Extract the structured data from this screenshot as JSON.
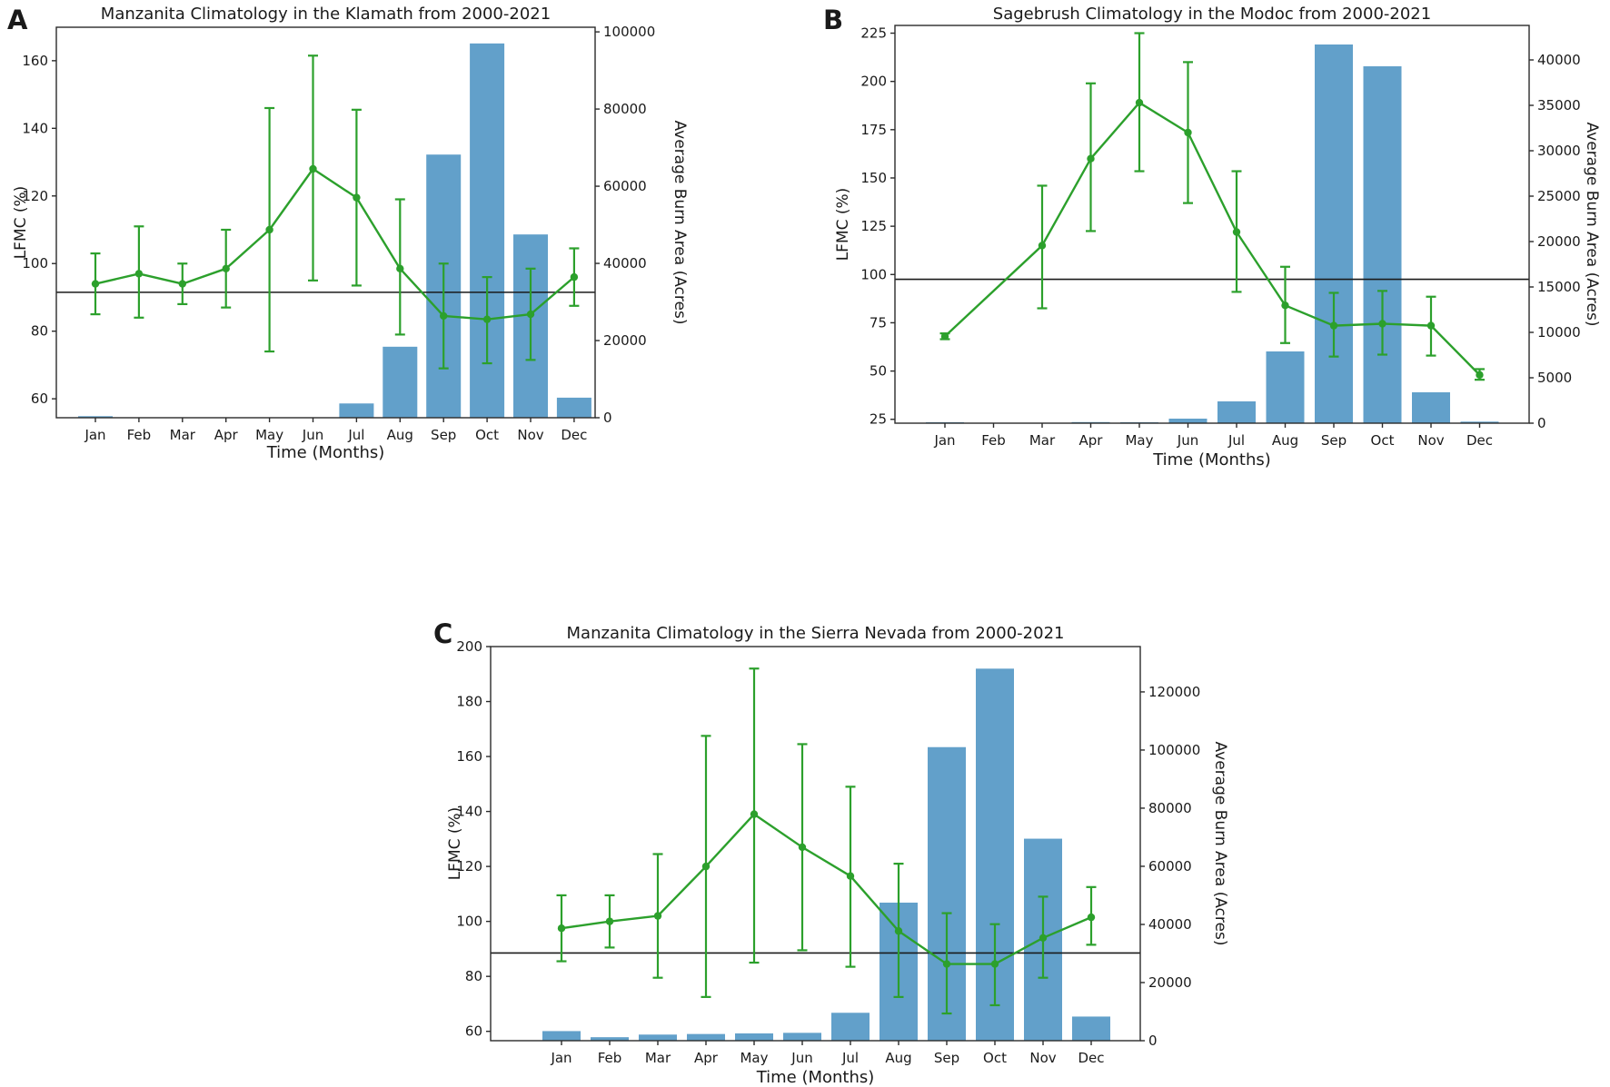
{
  "style": {
    "bar_color": "#1f77b4",
    "bar_opacity": 0.7,
    "bar_rendered_hex": "#62a0cb",
    "line_color": "#2ca02c",
    "threshold_color": "#1a1a1a",
    "spine_color": "#2b2b2b",
    "text_color": "#1a1a1a",
    "background": "#ffffff"
  },
  "chart_data": [
    {
      "id": "A",
      "panel_label": "A",
      "type": "bar",
      "overlay_type": "line-with-errorbars",
      "title": "Manzanita Climatology in the Klamath from 2000-2021",
      "xlabel": "Time (Months)",
      "ylabel_left": "LFMC (%)",
      "ylabel_right": "Average Burn Area (Acres)",
      "categories": [
        "Jan",
        "Feb",
        "Mar",
        "Apr",
        "May",
        "Jun",
        "Jul",
        "Aug",
        "Sep",
        "Oct",
        "Nov",
        "Dec"
      ],
      "series": [
        {
          "name": "LFMC mean",
          "axis": "left",
          "values": [
            94,
            97,
            94,
            98.5,
            110,
            128,
            119.5,
            98.5,
            84.5,
            83.5,
            85,
            96
          ]
        },
        {
          "name": "LFMC error low",
          "axis": "left",
          "values": [
            85,
            84,
            88,
            87,
            74,
            95,
            93.5,
            79,
            69,
            70.5,
            71.5,
            87.5
          ]
        },
        {
          "name": "LFMC error high",
          "axis": "left",
          "values": [
            103,
            111,
            100,
            110,
            146,
            161.5,
            145.5,
            119,
            100,
            96,
            98.5,
            104.5
          ]
        },
        {
          "name": "Average burn area (acres)",
          "axis": "right",
          "values": [
            400,
            0,
            0,
            0,
            0,
            0,
            3700,
            18400,
            68200,
            97000,
            47500,
            5200
          ]
        }
      ],
      "threshold_lfmc": 91.5,
      "yticks_left": [
        60,
        80,
        100,
        120,
        140,
        160
      ],
      "ylim_left": [
        54.4,
        169.9
      ],
      "yticks_right": [
        0,
        20000,
        40000,
        60000,
        80000,
        100000
      ],
      "ylim_right": [
        0,
        101200
      ],
      "grid": false,
      "legend": "none"
    },
    {
      "id": "B",
      "panel_label": "B",
      "type": "bar",
      "overlay_type": "line-with-errorbars",
      "title": "Sagebrush Climatology in the Modoc from 2000-2021",
      "xlabel": "Time (Months)",
      "ylabel_left": "LFMC (%)",
      "ylabel_right": "Average Burn Area (Acres)",
      "categories": [
        "Jan",
        "Feb",
        "Mar",
        "Apr",
        "May",
        "Jun",
        "Jul",
        "Aug",
        "Sep",
        "Oct",
        "Nov",
        "Dec"
      ],
      "series": [
        {
          "name": "LFMC mean",
          "axis": "left",
          "values": [
            68,
            null,
            115,
            160,
            189,
            173.5,
            122,
            84,
            73.5,
            74.5,
            73.5,
            48
          ]
        },
        {
          "name": "LFMC error low",
          "axis": "left",
          "values": [
            66.5,
            null,
            82.5,
            122.5,
            153.5,
            137,
            91,
            64.5,
            57.5,
            58.5,
            58,
            45.5
          ]
        },
        {
          "name": "LFMC error high",
          "axis": "left",
          "values": [
            69.5,
            null,
            146,
            199,
            225,
            210,
            153.5,
            104,
            90.5,
            91.5,
            88.5,
            51
          ]
        },
        {
          "name": "Average burn area (acres)",
          "axis": "right",
          "values": [
            100,
            0,
            0,
            120,
            100,
            500,
            2400,
            7900,
            41700,
            39300,
            3400,
            170
          ]
        }
      ],
      "threshold_lfmc": 97.5,
      "yticks_left": [
        25,
        50,
        75,
        100,
        125,
        150,
        175,
        200,
        225
      ],
      "ylim_left": [
        23,
        229
      ],
      "yticks_right": [
        0,
        5000,
        10000,
        15000,
        20000,
        25000,
        30000,
        35000,
        40000
      ],
      "ylim_right": [
        0,
        43800
      ],
      "grid": false,
      "legend": "none"
    },
    {
      "id": "C",
      "panel_label": "C",
      "type": "bar",
      "overlay_type": "line-with-errorbars",
      "title": "Manzanita Climatology in the Sierra Nevada from 2000-2021",
      "xlabel": "Time (Months)",
      "ylabel_left": "LFMC (%)",
      "ylabel_right": "Average Burn Area (Acres)",
      "categories": [
        "Jan",
        "Feb",
        "Mar",
        "Apr",
        "May",
        "Jun",
        "Jul",
        "Aug",
        "Sep",
        "Oct",
        "Nov",
        "Dec"
      ],
      "series": [
        {
          "name": "LFMC mean",
          "axis": "left",
          "values": [
            97.5,
            100,
            102,
            120,
            139,
            127,
            116.5,
            96.5,
            84.5,
            84.5,
            94,
            101.5
          ]
        },
        {
          "name": "LFMC error low",
          "axis": "left",
          "values": [
            85.5,
            90.5,
            79.5,
            72.5,
            85,
            89.5,
            83.5,
            72.5,
            66.5,
            69.5,
            79.5,
            91.5
          ]
        },
        {
          "name": "LFMC error high",
          "axis": "left",
          "values": [
            109.5,
            109.5,
            124.5,
            167.5,
            192,
            164.5,
            149,
            121,
            103,
            99,
            109,
            112.5
          ]
        },
        {
          "name": "Average burn area (acres)",
          "axis": "right",
          "values": [
            3300,
            1200,
            2100,
            2300,
            2500,
            2700,
            9600,
            47500,
            101000,
            128000,
            69500,
            8300
          ]
        }
      ],
      "threshold_lfmc": 88.5,
      "yticks_left": [
        60,
        80,
        100,
        120,
        140,
        160,
        180,
        200
      ],
      "ylim_left": [
        56.6,
        200
      ],
      "yticks_right": [
        0,
        20000,
        40000,
        60000,
        80000,
        100000,
        120000
      ],
      "ylim_right": [
        0,
        135600
      ],
      "grid": false,
      "legend": "none"
    }
  ]
}
